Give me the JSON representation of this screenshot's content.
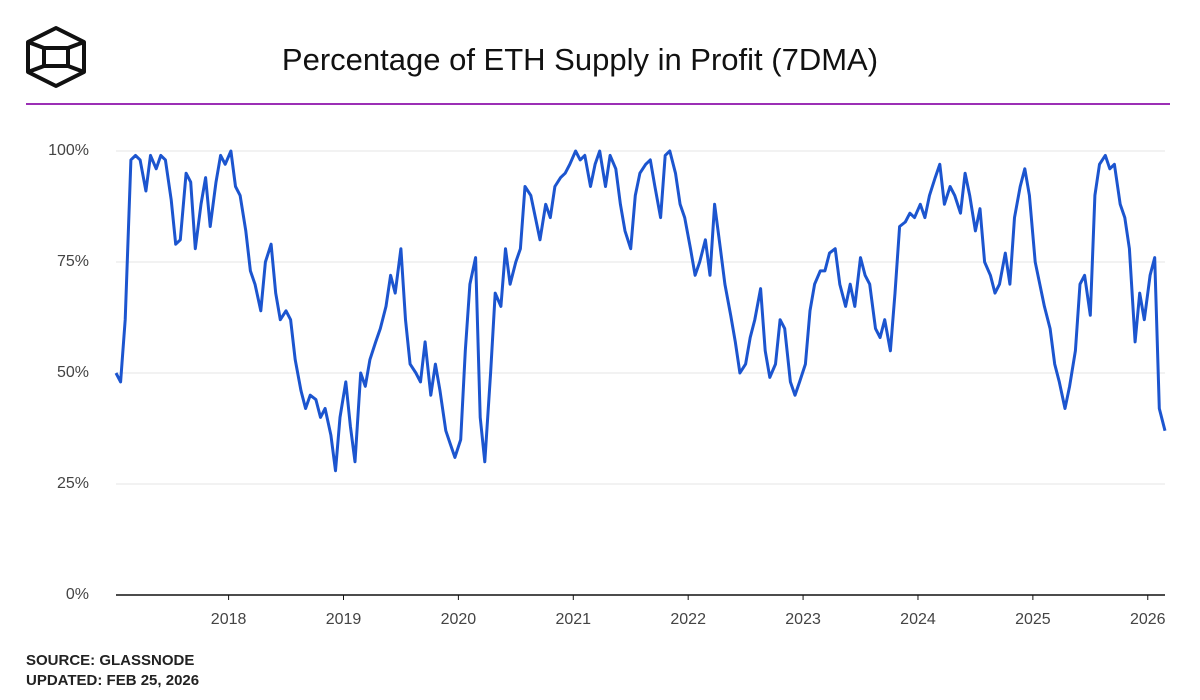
{
  "chart_data": {
    "type": "line",
    "title": "Percentage of ETH Supply in Profit (7DMA)",
    "source": "SOURCE: GLASSNODE",
    "updated": "UPDATED: FEB 25, 2026",
    "color": "#1c55cf",
    "grid": true,
    "xlim": [
      2017.02,
      2026.15
    ],
    "xticks": [
      2018,
      2019,
      2020,
      2021,
      2022,
      2023,
      2024,
      2025,
      2026
    ],
    "ylim": [
      0,
      100
    ],
    "yticks": [
      {
        "value": 0,
        "label": "0%"
      },
      {
        "value": 25,
        "label": "25%"
      },
      {
        "value": 50,
        "label": "50%"
      },
      {
        "value": 75,
        "label": "75%"
      },
      {
        "value": 100,
        "label": "100%"
      }
    ],
    "x": [
      2017.02,
      2017.06,
      2017.1,
      2017.15,
      2017.19,
      2017.23,
      2017.28,
      2017.32,
      2017.37,
      2017.41,
      2017.45,
      2017.5,
      2017.54,
      2017.58,
      2017.63,
      2017.67,
      2017.71,
      2017.76,
      2017.8,
      2017.84,
      2017.89,
      2017.93,
      2017.97,
      2018.02,
      2018.06,
      2018.1,
      2018.15,
      2018.19,
      2018.23,
      2018.28,
      2018.32,
      2018.37,
      2018.41,
      2018.45,
      2018.5,
      2018.54,
      2018.58,
      2018.63,
      2018.67,
      2018.71,
      2018.76,
      2018.8,
      2018.84,
      2018.89,
      2018.93,
      2018.97,
      2019.02,
      2019.06,
      2019.1,
      2019.15,
      2019.19,
      2019.23,
      2019.28,
      2019.32,
      2019.37,
      2019.41,
      2019.45,
      2019.5,
      2019.54,
      2019.58,
      2019.63,
      2019.67,
      2019.71,
      2019.76,
      2019.8,
      2019.84,
      2019.89,
      2019.93,
      2019.97,
      2020.02,
      2020.06,
      2020.1,
      2020.15,
      2020.19,
      2020.23,
      2020.28,
      2020.32,
      2020.37,
      2020.41,
      2020.45,
      2020.5,
      2020.54,
      2020.58,
      2020.63,
      2020.67,
      2020.71,
      2020.76,
      2020.8,
      2020.84,
      2020.89,
      2020.93,
      2020.97,
      2021.02,
      2021.06,
      2021.1,
      2021.15,
      2021.19,
      2021.23,
      2021.28,
      2021.32,
      2021.37,
      2021.41,
      2021.45,
      2021.5,
      2021.54,
      2021.58,
      2021.63,
      2021.67,
      2021.71,
      2021.76,
      2021.8,
      2021.84,
      2021.89,
      2021.93,
      2021.97,
      2022.02,
      2022.06,
      2022.1,
      2022.15,
      2022.19,
      2022.23,
      2022.28,
      2022.32,
      2022.37,
      2022.41,
      2022.45,
      2022.5,
      2022.54,
      2022.58,
      2022.63,
      2022.67,
      2022.71,
      2022.76,
      2022.8,
      2022.84,
      2022.89,
      2022.93,
      2022.97,
      2023.02,
      2023.06,
      2023.1,
      2023.15,
      2023.19,
      2023.23,
      2023.28,
      2023.32,
      2023.37,
      2023.41,
      2023.45,
      2023.5,
      2023.54,
      2023.58,
      2023.63,
      2023.67,
      2023.71,
      2023.76,
      2023.8,
      2023.84,
      2023.89,
      2023.93,
      2023.97,
      2024.02,
      2024.06,
      2024.1,
      2024.15,
      2024.19,
      2024.23,
      2024.28,
      2024.32,
      2024.37,
      2024.41,
      2024.45,
      2024.5,
      2024.54,
      2024.58,
      2024.63,
      2024.67,
      2024.71,
      2024.76,
      2024.8,
      2024.84,
      2024.89,
      2024.93,
      2024.97,
      2025.02,
      2025.06,
      2025.1,
      2025.15,
      2025.19,
      2025.23,
      2025.28,
      2025.32,
      2025.37,
      2025.41,
      2025.45,
      2025.5,
      2025.54,
      2025.58,
      2025.63,
      2025.67,
      2025.71,
      2025.76,
      2025.8,
      2025.84,
      2025.89,
      2025.93,
      2025.97,
      2026.02,
      2026.06,
      2026.1,
      2026.15
    ],
    "values": [
      50,
      48,
      62,
      98,
      99,
      98,
      91,
      99,
      96,
      99,
      98,
      89,
      79,
      80,
      95,
      93,
      78,
      88,
      94,
      83,
      93,
      99,
      97,
      100,
      92,
      90,
      82,
      73,
      70,
      64,
      75,
      79,
      68,
      62,
      64,
      62,
      53,
      46,
      42,
      45,
      44,
      40,
      42,
      36,
      28,
      40,
      48,
      38,
      30,
      50,
      47,
      53,
      57,
      60,
      65,
      72,
      68,
      78,
      62,
      52,
      50,
      48,
      57,
      45,
      52,
      46,
      37,
      34,
      31,
      35,
      55,
      70,
      76,
      40,
      30,
      50,
      68,
      65,
      78,
      70,
      75,
      78,
      92,
      90,
      85,
      80,
      88,
      85,
      92,
      94,
      95,
      97,
      100,
      98,
      99,
      92,
      97,
      100,
      92,
      99,
      96,
      88,
      82,
      78,
      90,
      95,
      97,
      98,
      92,
      85,
      99,
      100,
      95,
      88,
      85,
      78,
      72,
      75,
      80,
      72,
      88,
      78,
      70,
      63,
      57,
      50,
      52,
      58,
      62,
      69,
      55,
      49,
      52,
      62,
      60,
      48,
      45,
      48,
      52,
      64,
      70,
      73,
      73,
      77,
      78,
      70,
      65,
      70,
      65,
      76,
      72,
      70,
      60,
      58,
      62,
      55,
      68,
      83,
      84,
      86,
      85,
      88,
      85,
      90,
      94,
      97,
      88,
      92,
      90,
      86,
      95,
      90,
      82,
      87,
      75,
      72,
      68,
      70,
      77,
      70,
      85,
      92,
      96,
      90,
      75,
      70,
      65,
      60,
      52,
      48,
      42,
      47,
      55,
      70,
      72,
      63,
      90,
      97,
      99,
      96,
      97,
      88,
      85,
      78,
      57,
      68,
      62,
      72,
      76,
      42,
      37
    ]
  }
}
